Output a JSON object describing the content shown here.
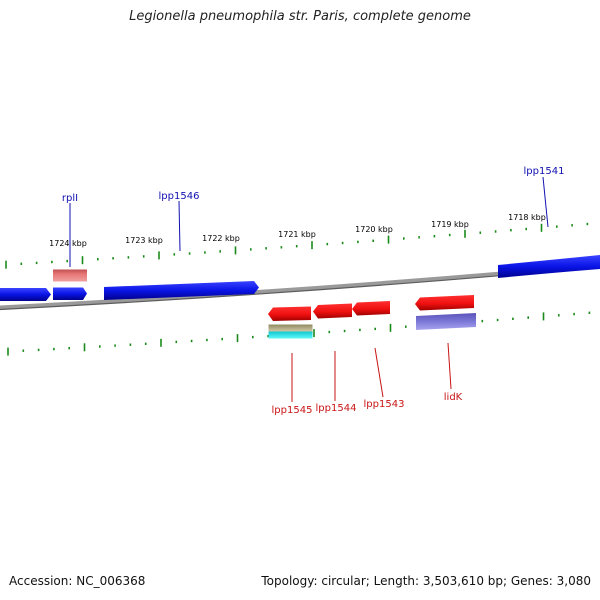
{
  "title": "Legionella pneumophila str. Paris, complete genome",
  "accession_text": "Accession: NC_006368",
  "summary_text": "Topology: circular; Length: 3,503,610 bp; Genes: 3,080",
  "scale_labels": [
    "1724 kbp",
    "1723 kbp",
    "1722 kbp",
    "1721 kbp",
    "1720 kbp",
    "1719 kbp",
    "1718 kbp"
  ],
  "top_genes": [
    "rplI",
    "lpp1546",
    "lpp1541"
  ],
  "bottom_genes": [
    "lpp1545",
    "lpp1544",
    "lpp1543",
    "lidK"
  ],
  "colors": {
    "forward_gene": "#0a14e6",
    "reverse_gene": "#f01010",
    "forward_label": "#1010b0",
    "reverse_label": "#c81414",
    "tick": "#1a8a1a",
    "backbone": "#8c8c8c",
    "rna_feature": "#e87878",
    "misc_feature": "#b8b090",
    "misc_feature_2": "#20e8e8",
    "domain_feature": "#7c78d8"
  }
}
